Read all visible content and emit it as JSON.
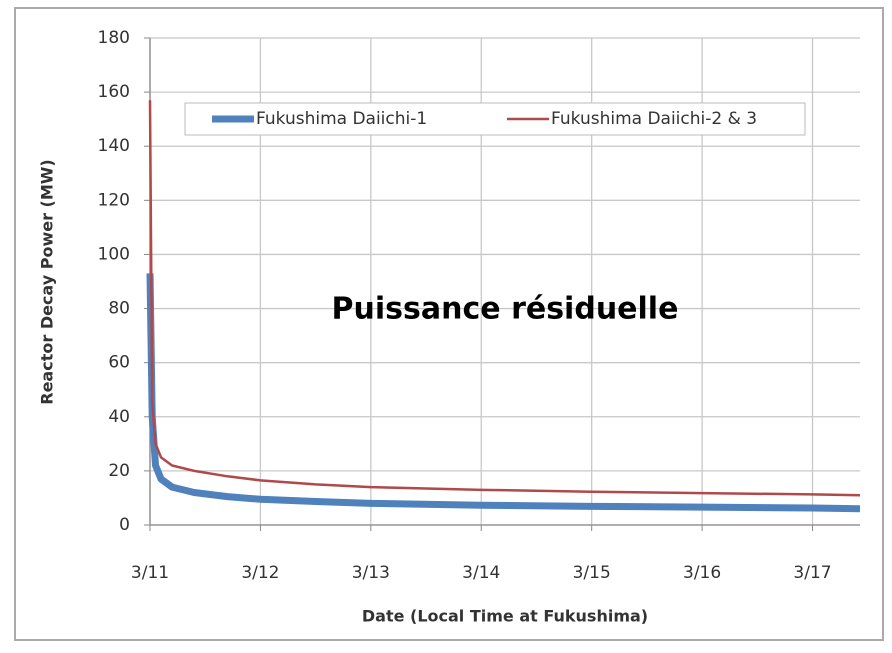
{
  "chart_data": {
    "type": "line",
    "x_label": "Date (Local Time at Fukushima)",
    "y_label": "Reactor Decay Power (MW)",
    "annotation": "Puissance résiduelle",
    "x": [
      0,
      0.02,
      0.05,
      0.1,
      0.2,
      0.4,
      0.7,
      1,
      1.5,
      2,
      3,
      4,
      5,
      6,
      6.43
    ],
    "series": [
      {
        "name": "Fukushima Daiichi-1",
        "color": "#4f81bd",
        "values": [
          93,
          40,
          22,
          17,
          14,
          12,
          10.5,
          9.5,
          8.7,
          8,
          7.3,
          6.9,
          6.6,
          6.3,
          6
        ]
      },
      {
        "name": "Fukushima Daiichi-2 & 3",
        "color": "#b0494a",
        "values": [
          157,
          45,
          30,
          25,
          22,
          20,
          18,
          16.5,
          15,
          14,
          13,
          12.3,
          11.8,
          11.3,
          11
        ]
      }
    ],
    "xlim": [
      0,
      6.43
    ],
    "xticks": [
      {
        "value": 0,
        "label": "3/11"
      },
      {
        "value": 1,
        "label": "3/12"
      },
      {
        "value": 2,
        "label": "3/13"
      },
      {
        "value": 3,
        "label": "3/14"
      },
      {
        "value": 4,
        "label": "3/15"
      },
      {
        "value": 5,
        "label": "3/16"
      },
      {
        "value": 6,
        "label": "3/17"
      }
    ],
    "ylim": [
      0,
      180
    ],
    "yticks": [
      0,
      20,
      40,
      60,
      80,
      100,
      120,
      140,
      160,
      180
    ],
    "grid": true,
    "legend": "top"
  }
}
